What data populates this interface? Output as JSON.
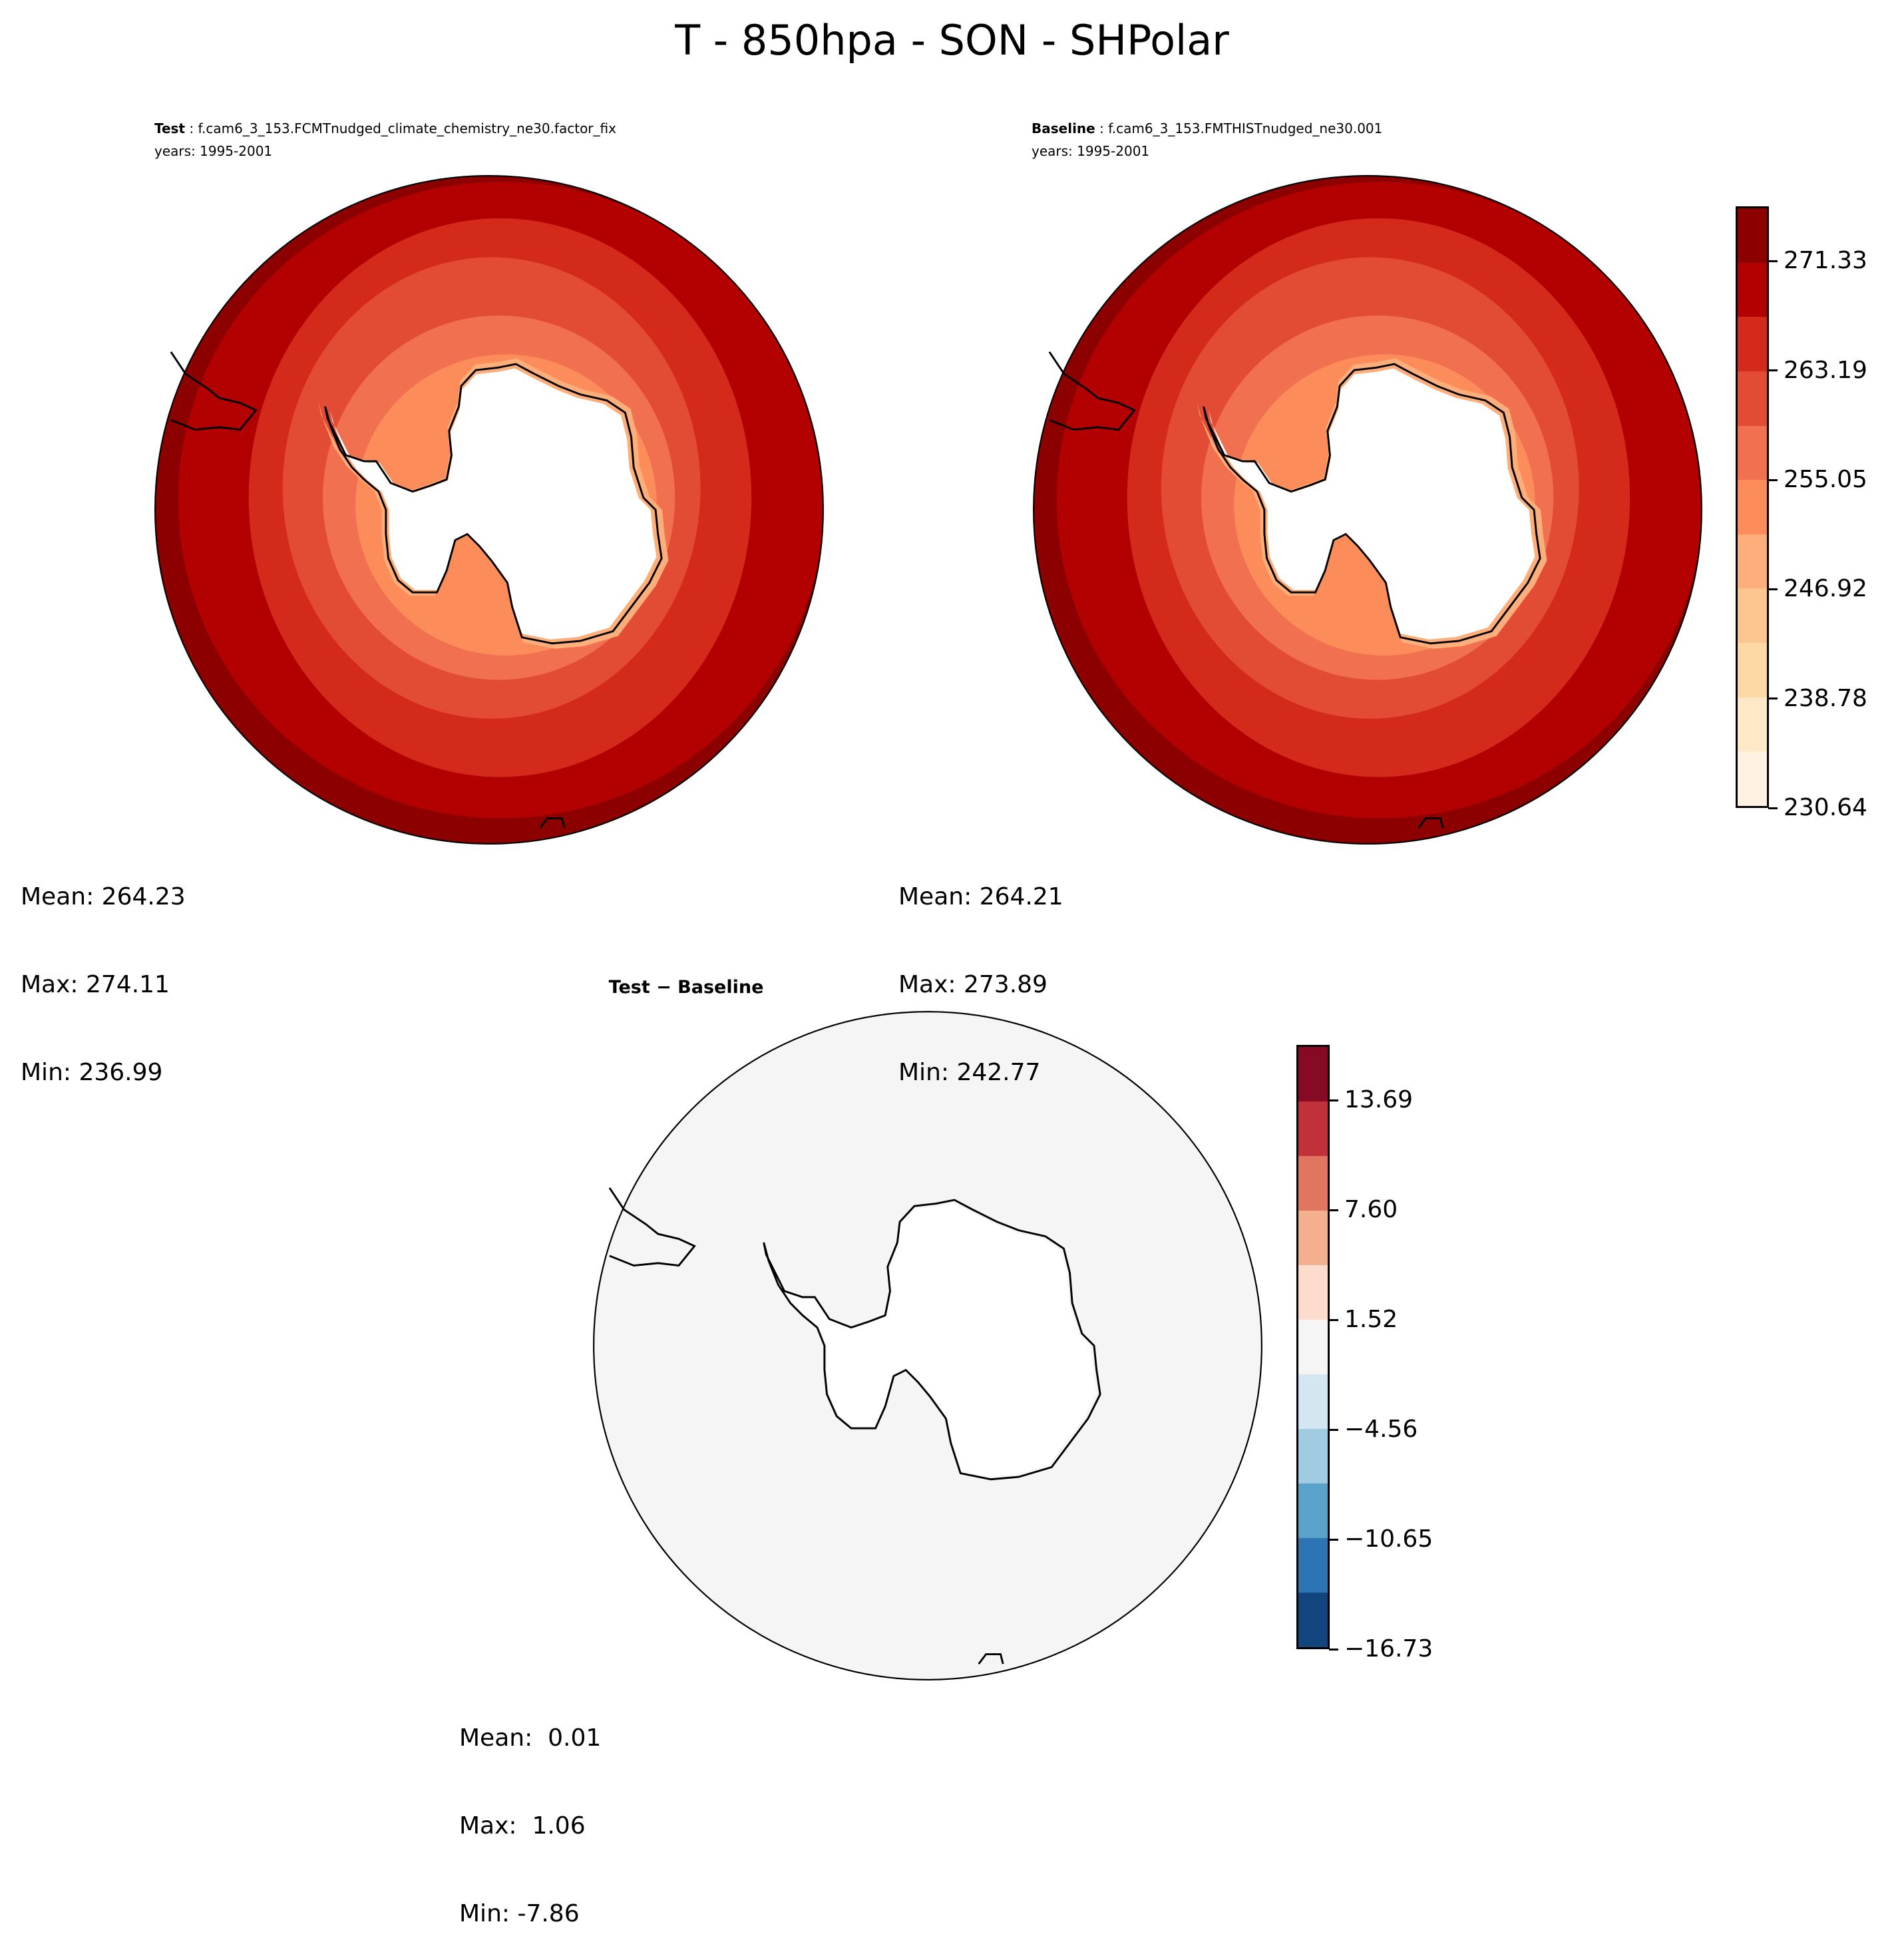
{
  "title": "T - 850hpa - SON - SHPolar",
  "panels": [
    {
      "label_bold": "Test",
      "case": " : f.cam6_3_153.FCMTnudged_climate_chemistry_ne30.factor_fix",
      "years": "years: 1995-2001",
      "stats": {
        "mean": "Mean: 264.23",
        "max": "Max: 274.11",
        "min": "Min: 236.99"
      }
    },
    {
      "label_bold": "Baseline",
      "case": " : f.cam6_3_153.FMTHISTnudged_ne30.001",
      "years": "years: 1995-2001",
      "stats": {
        "mean": "Mean: 264.21",
        "max": "Max: 273.89",
        "min": "Min: 242.77"
      }
    },
    {
      "title": "Test − Baseline",
      "stats": {
        "mean": "Mean:  0.01",
        "max": "Max:  1.06",
        "min": "Min: -7.86"
      }
    }
  ],
  "colorbars": {
    "field": {
      "colormap": "OrRd",
      "bottom": 230.64,
      "step": 4.07,
      "n_levels": 11,
      "ticks": [
        "271.33",
        "263.19",
        "255.05",
        "246.92",
        "238.78",
        "230.64"
      ],
      "tick_values": [
        271.33,
        263.19,
        255.05,
        246.92,
        238.78,
        230.64
      ],
      "colors_top_to_bottom": [
        "#8c0000",
        "#b30000",
        "#d32a1c",
        "#e34c34",
        "#f07050",
        "#fc8c59",
        "#fdae7a",
        "#fdc690",
        "#fdd9a6",
        "#fee8c8",
        "#fff2e2"
      ]
    },
    "diff": {
      "colormap": "RdBu_r",
      "bottom": -16.73,
      "step": 3.045,
      "n_levels": 11,
      "ticks": [
        "13.69",
        "7.60",
        "1.52",
        "−4.56",
        "−10.65",
        "−16.73"
      ],
      "tick_values": [
        13.69,
        7.6,
        1.52,
        -4.56,
        -10.65,
        -16.73
      ],
      "colors_top_to_bottom": [
        "#870a24",
        "#c0313a",
        "#e0765f",
        "#f4b08e",
        "#fddcce",
        "#f5f5f5",
        "#d3e6f1",
        "#9fcce2",
        "#5ba2cb",
        "#2c74b3",
        "#12457d"
      ]
    }
  },
  "chart_data": {
    "type": "heatmap",
    "projection": "south-polar-stereographic",
    "variable": "T",
    "level": "850hpa",
    "season": "SON",
    "region": "SHPolar",
    "land_color": "#ffffff",
    "diff_field_color": "#f5f5f5"
  }
}
